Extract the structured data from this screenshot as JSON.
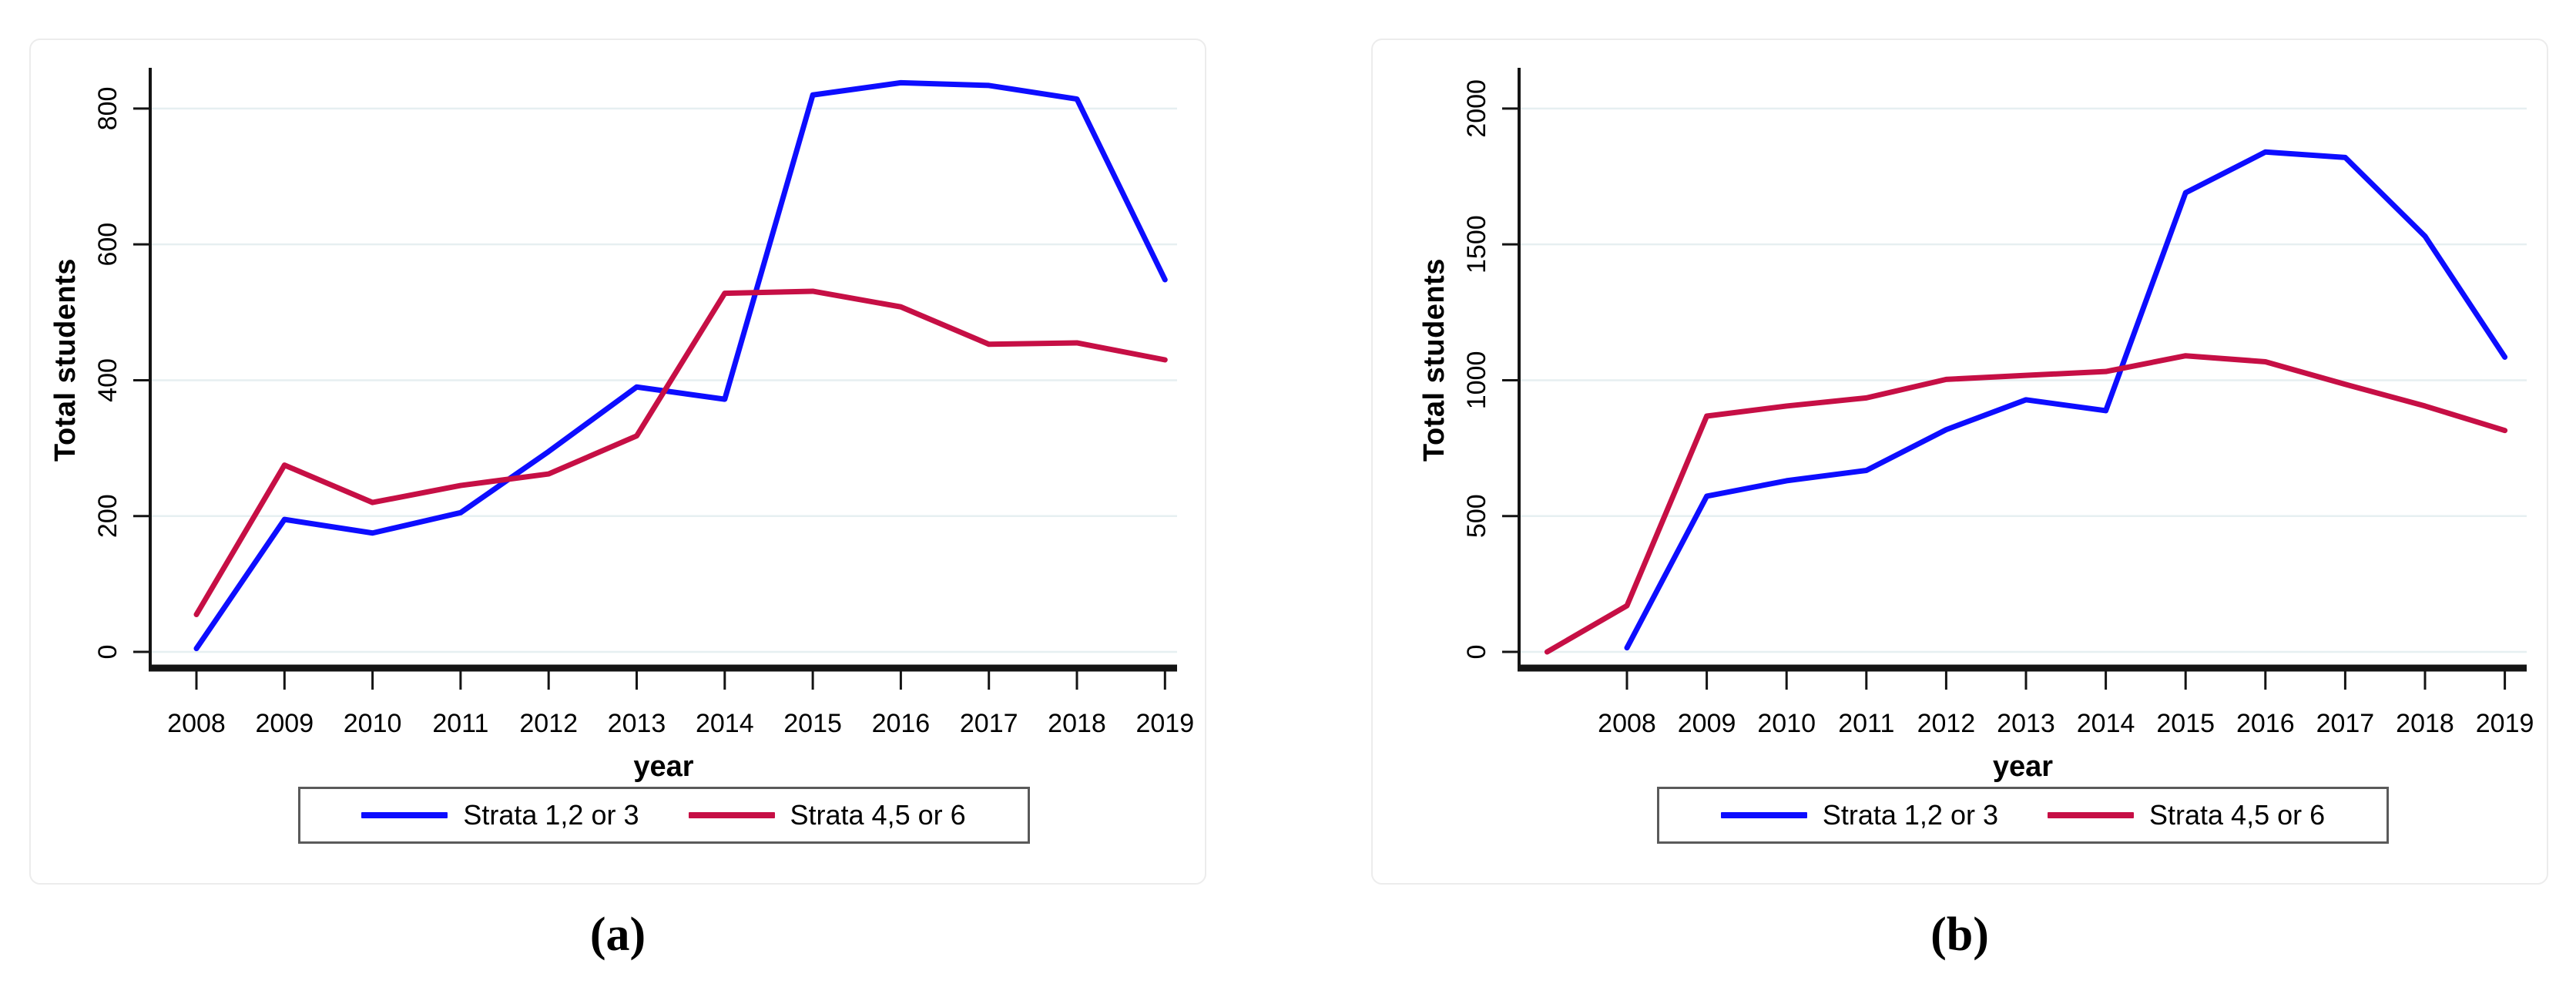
{
  "accent_colors": {
    "series_blue": "#0d0dff",
    "series_red": "#c60f45",
    "gridline": "#e6eff1",
    "axis": "#141414",
    "legend_border": "#5a5a5a",
    "frame_border": "#ececec"
  },
  "chart_data": [
    {
      "type": "line",
      "caption": "(a)",
      "xlabel": "year",
      "ylabel": "Total students",
      "grid": true,
      "legend_position": "bottom",
      "xticks": [
        2008,
        2009,
        2010,
        2011,
        2012,
        2013,
        2014,
        2015,
        2016,
        2017,
        2018,
        2019
      ],
      "yticks": [
        0,
        200,
        400,
        600,
        800
      ],
      "ylim": [
        0,
        860
      ],
      "series": [
        {
          "name": "Strata 1,2 or 3",
          "color": "#0d0dff",
          "x": [
            2008,
            2009,
            2010,
            2011,
            2012,
            2013,
            2014,
            2015,
            2016,
            2017,
            2018,
            2019
          ],
          "values": [
            5,
            195,
            175,
            205,
            295,
            390,
            372,
            820,
            838,
            834,
            814,
            548
          ]
        },
        {
          "name": "Strata 4,5 or 6",
          "color": "#c60f45",
          "x": [
            2008,
            2009,
            2010,
            2011,
            2012,
            2013,
            2014,
            2015,
            2016,
            2017,
            2018,
            2019
          ],
          "values": [
            55,
            275,
            220,
            245,
            262,
            318,
            528,
            531,
            508,
            453,
            455,
            430
          ]
        }
      ]
    },
    {
      "type": "line",
      "caption": "(b)",
      "xlabel": "year",
      "ylabel": "Total students",
      "grid": true,
      "legend_position": "bottom",
      "xticks": [
        2008,
        2009,
        2010,
        2011,
        2012,
        2013,
        2014,
        2015,
        2016,
        2017,
        2018,
        2019
      ],
      "yticks": [
        0,
        500,
        1000,
        1500,
        2000
      ],
      "ylim": [
        0,
        2150
      ],
      "series": [
        {
          "name": "Strata 1,2 or 3",
          "color": "#0d0dff",
          "x": [
            2008,
            2009,
            2010,
            2011,
            2012,
            2013,
            2014,
            2015,
            2016,
            2017,
            2018,
            2019
          ],
          "values": [
            15,
            573,
            630,
            668,
            818,
            928,
            888,
            1690,
            1840,
            1820,
            1530,
            1085
          ]
        },
        {
          "name": "Strata 4,5 or 6",
          "color": "#c60f45",
          "x": [
            2007,
            2008,
            2009,
            2010,
            2011,
            2012,
            2013,
            2014,
            2015,
            2016,
            2017,
            2018,
            2019
          ],
          "values": [
            0,
            170,
            868,
            905,
            935,
            1003,
            1018,
            1032,
            1090,
            1068,
            985,
            905,
            815
          ]
        }
      ]
    }
  ]
}
